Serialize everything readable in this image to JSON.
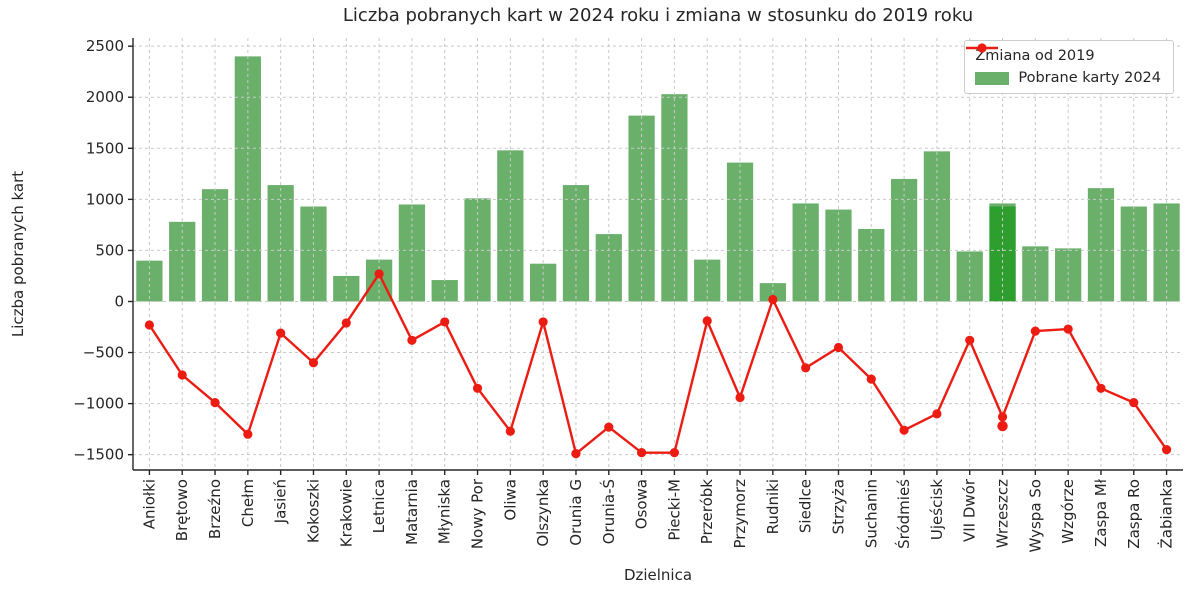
{
  "title": "Liczba pobranych kart w 2024 roku i zmiana w stosunku do 2019 roku",
  "axes": {
    "xlabel": "Dzielnica",
    "ylabel": "Liczba pobranych kart"
  },
  "legend": {
    "line_label": "Zmiana od 2019",
    "bar_label": "Pobrane karty 2024",
    "position": "upper right"
  },
  "colors": {
    "bar": "#6ab06a",
    "bar_highlight": "#2e9e2e",
    "line": "#ec1c13",
    "grid": "#c9c9c9",
    "spine": "#262626",
    "text": "#262626"
  },
  "chart_data": {
    "type": "combo",
    "categories": [
      "Aniołki",
      "Brętowo",
      "Brzeźno",
      "Chełm",
      "Jasień",
      "Kokoszki",
      "Krakowie",
      "Letnica",
      "Matarnia",
      "Młyniska",
      "Nowy Por",
      "Oliwa",
      "Olszynka",
      "Orunia G",
      "Orunia-Ś",
      "Osowa",
      "Piecki-M",
      "Przeróbk",
      "Przymorz",
      "Rudniki",
      "Siedlce",
      "Strzyża",
      "Suchanin",
      "Śródmieś",
      "Ujeścisk",
      "VII Dwór",
      "Wrzeszcz",
      "Wyspa So",
      "Wzgórze",
      "Zaspa Mł",
      "Zaspa Ro",
      "Żabianka"
    ],
    "series": [
      {
        "name": "Pobrane karty 2024",
        "type": "bar",
        "color": "#6ab06a",
        "values": [
          400,
          780,
          1100,
          2400,
          1140,
          930,
          250,
          410,
          950,
          210,
          1010,
          1480,
          370,
          1140,
          660,
          1820,
          2030,
          410,
          1360,
          180,
          960,
          900,
          710,
          1200,
          1470,
          490,
          960,
          540,
          520,
          1110,
          930,
          960
        ]
      },
      {
        "name": "Zmiana od 2019",
        "type": "line",
        "color": "#ec1c13",
        "values": [
          -230,
          -720,
          -990,
          -1300,
          -310,
          -600,
          -210,
          270,
          -380,
          -200,
          -850,
          -1270,
          -200,
          -1490,
          -1230,
          -1480,
          -1480,
          -190,
          -940,
          20,
          -650,
          -450,
          -760,
          -1260,
          -1100,
          -380,
          -1130,
          -290,
          -270,
          -850,
          -990,
          -1450
        ]
      }
    ],
    "highlight": {
      "category": "Wrzeszcz",
      "index": 26,
      "bar_overlay_value": 930,
      "bar_color": "#2e9e2e",
      "extra_marker_value": -1220
    },
    "title": "Liczba pobranych kart w 2024 roku i zmiana w stosunku do 2019 roku",
    "xlabel": "Dzielnica",
    "ylabel": "Liczba pobranych kart",
    "ylim": [
      -1650,
      2580
    ],
    "yticks": [
      2500,
      2000,
      1500,
      1000,
      500,
      0,
      -500,
      -1000,
      -1500
    ],
    "grid": true,
    "grid_style": "dashed",
    "legend_position": "upper right"
  }
}
